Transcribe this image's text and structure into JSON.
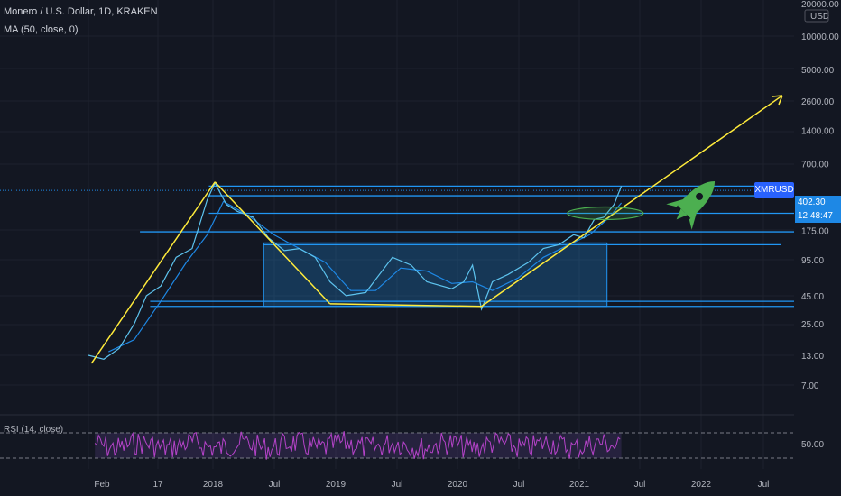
{
  "header": {
    "title": "Monero / U.S. Dollar, 1D, KRAKEN",
    "ma_label": "MA (50, close, 0)",
    "rsi_label": "RSI (14, close)"
  },
  "price_axis": {
    "currency": "USD",
    "top_label": "20000.00",
    "ticks": [
      "10000.00",
      "5000.00",
      "2600.00",
      "1400.00",
      "700.00",
      "175.00",
      "95.00",
      "45.00",
      "25.00",
      "13.00",
      "7.00"
    ]
  },
  "rsi_axis": {
    "label": "50.00"
  },
  "badges": {
    "symbol": "XMRUSD",
    "price": "402.30",
    "countdown": "12:48:47"
  },
  "time_axis": [
    "Feb",
    "17",
    "2018",
    "Jul",
    "2019",
    "Jul",
    "2020",
    "Jul",
    "2021",
    "Jul",
    "2022",
    "Jul"
  ],
  "colors": {
    "background": "#131722",
    "price_line": "#5dc3ee",
    "ma_line": "#1e88e5",
    "trend_lines": "#ffeb3b",
    "levels": "#2196f3",
    "box_fill": "rgba(33,150,243,0.25)",
    "rsi_line": "#b543c9",
    "rsi_band": "#4a2b6a",
    "rocket": "#4caf50"
  },
  "chart_data": {
    "type": "line",
    "title": "Monero / U.S. Dollar, 1D, KRAKEN",
    "yscale": "log",
    "ylim": [
      5,
      20000
    ],
    "x_ticks": [
      "Feb",
      "17",
      "2018",
      "Jul",
      "2019",
      "Jul",
      "2020",
      "Jul",
      "2021",
      "Jul",
      "2022",
      "Jul"
    ],
    "series": [
      {
        "name": "Monero / U.S. Dollar",
        "x": [
          "2017-01-01",
          "2017-02-15",
          "2017-04-01",
          "2017-05-15",
          "2017-06-20",
          "2017-08-01",
          "2017-09-15",
          "2017-11-01",
          "2017-12-15",
          "2018-01-07",
          "2018-02-10",
          "2018-03-15",
          "2018-05-01",
          "2018-06-15",
          "2018-08-01",
          "2018-09-15",
          "2018-11-01",
          "2018-12-15",
          "2019-02-01",
          "2019-04-01",
          "2019-06-20",
          "2019-08-15",
          "2019-10-01",
          "2019-12-15",
          "2020-01-20",
          "2020-02-15",
          "2020-03-13",
          "2020-04-15",
          "2020-06-01",
          "2020-08-01",
          "2020-09-15",
          "2020-11-01",
          "2020-12-15",
          "2021-01-15",
          "2021-02-15",
          "2021-03-15",
          "2021-04-15",
          "2021-05-07"
        ],
        "values": [
          13,
          12,
          15,
          25,
          45,
          55,
          100,
          120,
          330,
          470,
          300,
          260,
          230,
          150,
          115,
          120,
          100,
          60,
          45,
          48,
          100,
          85,
          60,
          52,
          60,
          85,
          34,
          60,
          70,
          90,
          120,
          130,
          160,
          150,
          220,
          230,
          300,
          440
        ]
      },
      {
        "name": "MA (50, close, 0)",
        "x": [
          "2017-03-01",
          "2017-05-15",
          "2017-08-01",
          "2017-10-15",
          "2017-12-15",
          "2018-02-01",
          "2018-04-15",
          "2018-07-01",
          "2018-09-15",
          "2018-12-01",
          "2019-02-15",
          "2019-05-01",
          "2019-07-15",
          "2019-10-01",
          "2019-12-15",
          "2020-02-15",
          "2020-04-15",
          "2020-07-01",
          "2020-09-15",
          "2020-12-01",
          "2021-02-01",
          "2021-04-01",
          "2021-05-07"
        ],
        "values": [
          14,
          18,
          40,
          90,
          160,
          320,
          240,
          160,
          120,
          90,
          50,
          50,
          80,
          75,
          58,
          60,
          50,
          65,
          100,
          130,
          160,
          230,
          310
        ]
      }
    ],
    "levels": [
      440,
      360,
      250,
      170,
      130,
      40,
      36
    ],
    "trend_lines": [
      {
        "from": [
          "2017-01-10",
          11
        ],
        "to": [
          "2018-01-07",
          480
        ]
      },
      {
        "from": [
          "2018-01-07",
          480
        ],
        "to": [
          "2018-12-15",
          38
        ]
      },
      {
        "from": [
          "2018-12-15",
          38
        ],
        "to": [
          "2020-03-13",
          36
        ]
      },
      {
        "from": [
          "2020-03-13",
          36
        ],
        "to": [
          "2022-09-01",
          2900
        ]
      }
    ],
    "rsi": {
      "label": "RSI (14, close)",
      "level": 50,
      "upper": 70,
      "lower": 30
    }
  }
}
